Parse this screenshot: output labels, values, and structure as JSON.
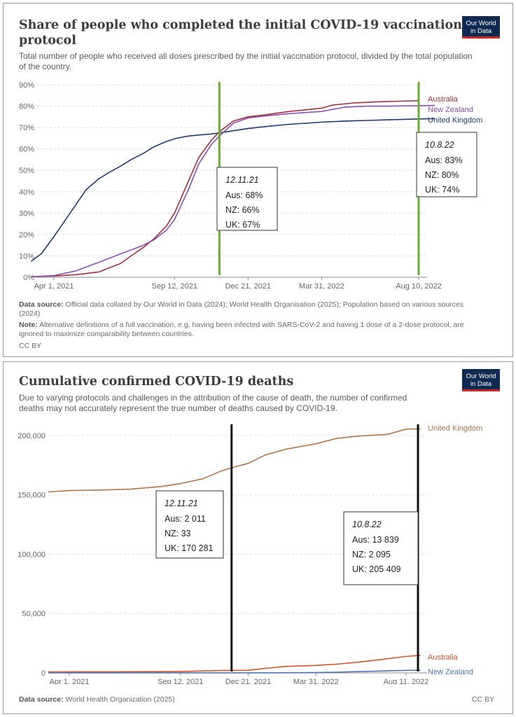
{
  "panel1": {
    "title_line1": "Share of people who completed the initial COVID-19 vaccination",
    "title_line2": "protocol",
    "subtitle_line1": "Total number of people who received all doses prescribed by the initial vaccination protocol, divided by the total population",
    "subtitle_line2": "of the country.",
    "logo_line1": "Our World",
    "logo_line2": "in Data",
    "source_label": "Data source:",
    "source_line1": " Official data collated by Our World in Data (2024); World Health Organisation (2025); Population based on various sources",
    "source_line2": "(2024)",
    "note_label": "Note:",
    "note_line1": " Alternative definitions of a full vaccination, e.g. having been infected with SARS-CoV-2 and having 1 dose of a 2-dose protocol, are",
    "note_line2": "ignored to maximize comparability between countries.",
    "license": "CC BY"
  },
  "panel2": {
    "title": "Cumulative confirmed COVID-19 deaths",
    "subtitle_line1": "Due to varying protocols and challenges in the attribution of the cause of death, the number of confirmed",
    "subtitle_line2": "deaths may not accurately represent the true number of deaths caused by COVID-19.",
    "logo_line1": "Our World",
    "logo_line2": "in Data",
    "source_label": "Data source:",
    "source_text": " World Health Organization (2025)",
    "license": "CC BY"
  },
  "chart_data": [
    {
      "type": "line",
      "x_tick_labels": [
        "Apr 1, 2021",
        "Sep 12, 2021",
        "Dec 21, 2021",
        "Mar 31, 2022",
        "Aug 10, 2022"
      ],
      "x_tick_dates": [
        "2021-04-01",
        "2021-09-12",
        "2021-12-21",
        "2022-03-31",
        "2022-08-10"
      ],
      "y_tick_labels": [
        "0%",
        "10%",
        "20%",
        "30%",
        "40%",
        "50%",
        "60%",
        "70%",
        "80%",
        "90%"
      ],
      "ylim": [
        0,
        90
      ],
      "grid": true,
      "series": [
        {
          "name": "United Kingdom",
          "color": "#1f3a6e",
          "x": [
            "2021-03-01",
            "2021-03-15",
            "2021-04-01",
            "2021-04-15",
            "2021-05-01",
            "2021-05-15",
            "2021-06-01",
            "2021-06-15",
            "2021-07-01",
            "2021-07-15",
            "2021-08-01",
            "2021-08-15",
            "2021-09-01",
            "2021-09-15",
            "2021-10-01",
            "2021-10-15",
            "2021-11-01",
            "2021-11-12",
            "2021-12-01",
            "2021-12-21",
            "2022-01-15",
            "2022-02-15",
            "2022-03-31",
            "2022-05-01",
            "2022-06-01",
            "2022-07-01",
            "2022-08-10",
            "2022-09-01"
          ],
          "y": [
            7.5,
            11,
            19,
            26,
            34,
            41,
            46,
            49,
            52,
            55,
            58,
            61,
            63.5,
            65,
            66,
            66.5,
            67,
            67.5,
            68.5,
            69.5,
            70.5,
            71.5,
            72.5,
            73,
            73.3,
            73.6,
            74,
            74.2
          ]
        },
        {
          "name": "Australia",
          "color": "#a2303c",
          "x": [
            "2021-03-01",
            "2021-04-01",
            "2021-05-01",
            "2021-06-01",
            "2021-07-01",
            "2021-07-15",
            "2021-08-01",
            "2021-08-15",
            "2021-09-01",
            "2021-09-12",
            "2021-10-01",
            "2021-10-15",
            "2021-11-01",
            "2021-11-12",
            "2021-12-01",
            "2021-12-21",
            "2022-01-15",
            "2022-02-15",
            "2022-03-31",
            "2022-04-15",
            "2022-05-15",
            "2022-06-15",
            "2022-07-15",
            "2022-08-10"
          ],
          "y": [
            0.3,
            0.6,
            1.2,
            2.5,
            6.5,
            10,
            14,
            18,
            24,
            30,
            45,
            56,
            64,
            68,
            73,
            75,
            76,
            77.5,
            79,
            80.5,
            81.5,
            82,
            82.3,
            82.5
          ]
        },
        {
          "name": "New Zealand",
          "color": "#8a4fb0",
          "x": [
            "2021-03-01",
            "2021-04-01",
            "2021-05-01",
            "2021-06-01",
            "2021-07-01",
            "2021-08-01",
            "2021-08-15",
            "2021-09-01",
            "2021-09-12",
            "2021-10-01",
            "2021-10-15",
            "2021-11-01",
            "2021-11-12",
            "2021-12-01",
            "2021-12-21",
            "2022-01-15",
            "2022-02-15",
            "2022-03-31",
            "2022-05-01",
            "2022-06-01",
            "2022-07-01",
            "2022-08-10",
            "2022-09-01"
          ],
          "y": [
            0.2,
            0.8,
            3,
            7,
            11,
            15,
            17.5,
            22,
            27,
            41,
            53,
            62,
            66,
            72,
            74.5,
            75.5,
            76.5,
            77.5,
            79.5,
            80,
            80,
            80.2,
            80.3
          ]
        }
      ],
      "annotations": [
        {
          "date": "2021-11-12",
          "title": "12.11.21",
          "lines": [
            "Aus: 68%",
            "NZ:  66%",
            "UK:  67%"
          ]
        },
        {
          "date": "2022-08-10",
          "title": "10.8.22",
          "lines": [
            "Aus: 83%",
            "NZ:  80%",
            "UK:  74%"
          ]
        }
      ],
      "marker_color": "#6aaa35"
    },
    {
      "type": "line",
      "x_tick_labels": [
        "Apr 1, 2021",
        "Sep 12, 2021",
        "Dec 21, 2021",
        "Mar 31, 2022",
        "Aug 11, 2022"
      ],
      "x_tick_dates": [
        "2021-04-01",
        "2021-09-12",
        "2021-12-21",
        "2022-03-31",
        "2022-08-11"
      ],
      "y_tick_labels": [
        "0",
        "50,000",
        "100,000",
        "150,000",
        "200,000"
      ],
      "ylim": [
        0,
        210000
      ],
      "grid": true,
      "series": [
        {
          "name": "United Kingdom",
          "color": "#b0754a",
          "x": [
            "2021-03-01",
            "2021-04-01",
            "2021-05-15",
            "2021-07-01",
            "2021-08-15",
            "2021-09-12",
            "2021-10-15",
            "2021-11-12",
            "2021-12-01",
            "2021-12-21",
            "2022-01-15",
            "2022-02-15",
            "2022-03-31",
            "2022-04-30",
            "2022-06-01",
            "2022-07-15",
            "2022-08-11",
            "2022-09-01"
          ],
          "y": [
            152500,
            153600,
            154000,
            154800,
            157000,
            159500,
            163500,
            170281,
            173500,
            176500,
            183500,
            188500,
            193000,
            197500,
            199500,
            201000,
            205409,
            205600
          ]
        },
        {
          "name": "Australia",
          "color": "#d0542c",
          "x": [
            "2021-03-01",
            "2021-06-01",
            "2021-09-12",
            "2021-11-12",
            "2021-12-21",
            "2022-01-15",
            "2022-02-15",
            "2022-03-31",
            "2022-05-01",
            "2022-06-01",
            "2022-07-01",
            "2022-08-11",
            "2022-09-01"
          ],
          "y": [
            900,
            920,
            1100,
            2011,
            2200,
            3800,
            5500,
            6300,
            7400,
            9000,
            11000,
            13839,
            14800
          ]
        },
        {
          "name": "New Zealand",
          "color": "#4d74b8",
          "x": [
            "2021-03-01",
            "2021-11-12",
            "2022-01-15",
            "2022-03-15",
            "2022-05-01",
            "2022-06-15",
            "2022-08-11",
            "2022-09-01"
          ],
          "y": [
            26,
            33,
            50,
            200,
            600,
            1300,
            2095,
            2300
          ]
        }
      ],
      "annotations": [
        {
          "date": "2021-11-12",
          "title": "12.11.21",
          "lines": [
            "Aus: 2 011",
            "NZ:  33",
            "UK:  170 281"
          ]
        },
        {
          "date": "2022-08-11",
          "title": "10.8.22",
          "lines": [
            "Aus: 13 839",
            "NZ:  2 095",
            "UK:  205 409"
          ]
        }
      ],
      "marker_color": "#111111"
    }
  ]
}
